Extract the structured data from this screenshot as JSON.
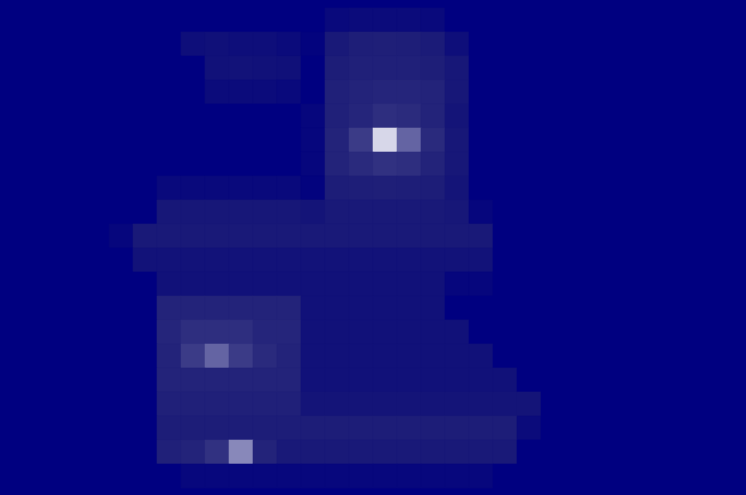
{
  "chart_data": {
    "type": "heatmap",
    "tick_labels": false,
    "grid": false,
    "zlim": [
      0,
      1
    ],
    "colors": [
      "#000080",
      "#1c1c72",
      "#3c3c88",
      "#9a9ac8",
      "#ffffff"
    ],
    "z": [
      [
        0,
        0,
        0,
        0,
        0,
        0,
        0,
        0,
        0,
        0,
        0,
        0,
        0,
        0.08,
        0.1,
        0.1,
        0.1,
        0.08,
        0,
        0,
        0,
        0,
        0,
        0,
        0,
        0,
        0,
        0,
        0,
        0
      ],
      [
        0,
        0,
        0,
        0,
        0,
        0,
        0,
        0.12,
        0.14,
        0.12,
        0.12,
        0.1,
        0.03,
        0.22,
        0.26,
        0.27,
        0.26,
        0.24,
        0.12,
        0,
        0,
        0,
        0,
        0,
        0,
        0,
        0,
        0,
        0,
        0
      ],
      [
        0,
        0,
        0,
        0,
        0,
        0,
        0,
        0,
        0.15,
        0.16,
        0.15,
        0.14,
        0,
        0.25,
        0.28,
        0.28,
        0.28,
        0.26,
        0.2,
        0,
        0,
        0,
        0,
        0,
        0,
        0,
        0,
        0,
        0,
        0
      ],
      [
        0,
        0,
        0,
        0,
        0,
        0,
        0,
        0,
        0.1,
        0.1,
        0.1,
        0.08,
        0,
        0.28,
        0.3,
        0.32,
        0.32,
        0.3,
        0.2,
        0,
        0,
        0,
        0,
        0,
        0,
        0,
        0,
        0,
        0,
        0
      ],
      [
        0,
        0,
        0,
        0,
        0,
        0,
        0,
        0,
        0,
        0,
        0,
        0,
        0.05,
        0.28,
        0.32,
        0.38,
        0.36,
        0.3,
        0.18,
        0,
        0,
        0,
        0,
        0,
        0,
        0,
        0,
        0,
        0,
        0
      ],
      [
        0,
        0,
        0,
        0,
        0,
        0,
        0,
        0,
        0,
        0,
        0,
        0,
        0.05,
        0.3,
        0.45,
        0.9,
        0.6,
        0.35,
        0.2,
        0,
        0,
        0,
        0,
        0,
        0,
        0,
        0,
        0,
        0,
        0
      ],
      [
        0,
        0,
        0,
        0,
        0,
        0,
        0,
        0,
        0,
        0,
        0,
        0,
        0.05,
        0.3,
        0.35,
        0.4,
        0.38,
        0.3,
        0.2,
        0,
        0,
        0,
        0,
        0,
        0,
        0,
        0,
        0,
        0,
        0
      ],
      [
        0,
        0,
        0,
        0,
        0,
        0,
        0.08,
        0.08,
        0.08,
        0.08,
        0.08,
        0.08,
        0.03,
        0.25,
        0.26,
        0.27,
        0.26,
        0.25,
        0.18,
        0,
        0,
        0,
        0,
        0,
        0,
        0,
        0,
        0,
        0,
        0
      ],
      [
        0,
        0,
        0,
        0,
        0,
        0,
        0.2,
        0.2,
        0.2,
        0.2,
        0.2,
        0.2,
        0.18,
        0.22,
        0.22,
        0.22,
        0.22,
        0.22,
        0.2,
        0.05,
        0,
        0,
        0,
        0,
        0,
        0,
        0,
        0,
        0,
        0
      ],
      [
        0,
        0,
        0,
        0,
        0.05,
        0.22,
        0.22,
        0.22,
        0.22,
        0.22,
        0.22,
        0.22,
        0.22,
        0.22,
        0.22,
        0.22,
        0.22,
        0.22,
        0.22,
        0.22,
        0,
        0,
        0,
        0,
        0,
        0,
        0,
        0,
        0,
        0
      ],
      [
        0,
        0,
        0,
        0,
        0,
        0.16,
        0.16,
        0.16,
        0.16,
        0.16,
        0.16,
        0.16,
        0.16,
        0.16,
        0.16,
        0.16,
        0.16,
        0.16,
        0.16,
        0.16,
        0,
        0,
        0,
        0,
        0,
        0,
        0,
        0,
        0,
        0
      ],
      [
        0,
        0,
        0,
        0,
        0,
        0,
        0.15,
        0.15,
        0.15,
        0.15,
        0.15,
        0.15,
        0.15,
        0.15,
        0.15,
        0.15,
        0.15,
        0.15,
        0.05,
        0.05,
        0,
        0,
        0,
        0,
        0,
        0,
        0,
        0,
        0,
        0
      ],
      [
        0,
        0,
        0,
        0,
        0,
        0,
        0.3,
        0.3,
        0.3,
        0.3,
        0.3,
        0.3,
        0.15,
        0.15,
        0.15,
        0.15,
        0.15,
        0.15,
        0,
        0,
        0,
        0,
        0,
        0,
        0,
        0,
        0,
        0,
        0,
        0
      ],
      [
        0,
        0,
        0,
        0,
        0,
        0,
        0.32,
        0.38,
        0.38,
        0.38,
        0.32,
        0.32,
        0.15,
        0.15,
        0.15,
        0.15,
        0.15,
        0.15,
        0.15,
        0,
        0,
        0,
        0,
        0,
        0,
        0,
        0,
        0,
        0,
        0
      ],
      [
        0,
        0,
        0,
        0,
        0,
        0,
        0.3,
        0.45,
        0.6,
        0.45,
        0.35,
        0.3,
        0.15,
        0.15,
        0.15,
        0.15,
        0.15,
        0.15,
        0.15,
        0.15,
        0,
        0,
        0,
        0,
        0,
        0,
        0,
        0,
        0,
        0
      ],
      [
        0,
        0,
        0,
        0,
        0,
        0,
        0.3,
        0.3,
        0.3,
        0.3,
        0.3,
        0.3,
        0.15,
        0.15,
        0.15,
        0.15,
        0.15,
        0.15,
        0.15,
        0.15,
        0.15,
        0,
        0,
        0,
        0,
        0,
        0,
        0,
        0,
        0
      ],
      [
        0,
        0,
        0,
        0,
        0,
        0,
        0.28,
        0.28,
        0.28,
        0.28,
        0.28,
        0.28,
        0.18,
        0.18,
        0.18,
        0.18,
        0.18,
        0.18,
        0.18,
        0.18,
        0.18,
        0.18,
        0,
        0,
        0,
        0,
        0,
        0,
        0,
        0
      ],
      [
        0,
        0,
        0,
        0,
        0,
        0,
        0.25,
        0.25,
        0.25,
        0.25,
        0.25,
        0.25,
        0.25,
        0.25,
        0.25,
        0.25,
        0.25,
        0.25,
        0.25,
        0.25,
        0.25,
        0.1,
        0,
        0,
        0,
        0,
        0,
        0,
        0,
        0
      ],
      [
        0,
        0,
        0,
        0,
        0,
        0,
        0.28,
        0.3,
        0.4,
        0.7,
        0.3,
        0.22,
        0.22,
        0.22,
        0.22,
        0.22,
        0.22,
        0.22,
        0.22,
        0.22,
        0.22,
        0,
        0,
        0,
        0,
        0,
        0,
        0,
        0,
        0
      ],
      [
        0,
        0,
        0,
        0,
        0,
        0,
        0,
        0.06,
        0.06,
        0.06,
        0.06,
        0.06,
        0.06,
        0.06,
        0.06,
        0.06,
        0.06,
        0.06,
        0.06,
        0.06,
        0,
        0,
        0,
        0,
        0,
        0,
        0,
        0,
        0,
        0
      ]
    ]
  }
}
